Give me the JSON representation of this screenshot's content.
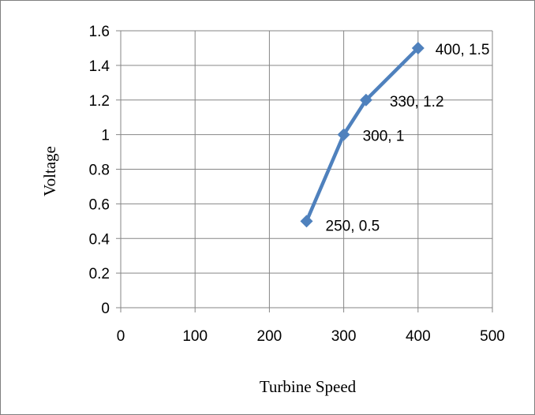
{
  "chart_data": {
    "type": "line",
    "title": "",
    "xlabel": "Turbine Speed",
    "ylabel": "Voltage",
    "xlim": [
      0,
      500
    ],
    "ylim": [
      0,
      1.6
    ],
    "x_ticks": [
      "0",
      "100",
      "200",
      "300",
      "400",
      "500"
    ],
    "y_ticks": [
      "0",
      "0.2",
      "0.4",
      "0.6",
      "0.8",
      "1",
      "1.2",
      "1.4",
      "1.6"
    ],
    "x_tick_values": [
      0,
      100,
      200,
      300,
      400,
      500
    ],
    "y_tick_values": [
      0,
      0.2,
      0.4,
      0.6,
      0.8,
      1,
      1.2,
      1.4,
      1.6
    ],
    "grid": true,
    "legend": "none",
    "series": [
      {
        "color": "#4f81bd",
        "marker": "diamond",
        "points": [
          {
            "x": 250,
            "y": 0.5,
            "label": "250, 0.5"
          },
          {
            "x": 300,
            "y": 1,
            "label": "300, 1"
          },
          {
            "x": 330,
            "y": 1.2,
            "label": "330, 1.2"
          },
          {
            "x": 400,
            "y": 1.5,
            "label": "400, 1.5"
          }
        ]
      }
    ]
  }
}
